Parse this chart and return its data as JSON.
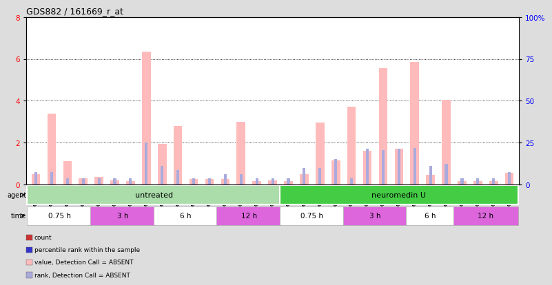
{
  "title": "GDS882 / 161669_r_at",
  "samples": [
    "GSM30904",
    "GSM30905",
    "GSM30906",
    "GSM30907",
    "GSM30912",
    "GSM30913",
    "GSM30914",
    "GSM30915",
    "GSM30919",
    "GSM30920",
    "GSM30921",
    "GSM30922",
    "GSM30927",
    "GSM30928",
    "GSM30929",
    "GSM30930",
    "GSM30908",
    "GSM30909",
    "GSM30910",
    "GSM30911",
    "GSM30916",
    "GSM30917",
    "GSM30918",
    "GSM30923",
    "GSM30924",
    "GSM30925",
    "GSM30926",
    "GSM30931",
    "GSM30932",
    "GSM30933",
    "GSM30934"
  ],
  "value_bars": [
    0.5,
    3.4,
    1.1,
    0.3,
    0.35,
    0.2,
    0.15,
    6.35,
    1.95,
    2.8,
    0.25,
    0.25,
    0.25,
    3.0,
    0.15,
    0.2,
    0.15,
    0.5,
    2.95,
    1.15,
    3.7,
    1.6,
    5.55,
    1.7,
    5.85,
    0.45,
    4.05,
    0.15,
    0.15,
    0.15,
    0.55
  ],
  "rank_bars": [
    0.6,
    0.6,
    0.3,
    0.3,
    0.3,
    0.3,
    0.3,
    2.0,
    0.9,
    0.7,
    0.3,
    0.3,
    0.5,
    0.5,
    0.3,
    0.3,
    0.3,
    0.8,
    0.8,
    1.2,
    0.3,
    1.7,
    1.65,
    1.7,
    1.75,
    0.9,
    1.0,
    0.3,
    0.3,
    0.3,
    0.6
  ],
  "ylim_left": [
    0,
    8
  ],
  "ylim_right": [
    0,
    100
  ],
  "yticks_left": [
    0,
    2,
    4,
    6,
    8
  ],
  "yticks_right": [
    0,
    25,
    50,
    75,
    100
  ],
  "ytick_labels_right": [
    "0",
    "25",
    "50",
    "75",
    "100%"
  ],
  "color_value_absent": "#ffbbbb",
  "color_rank_absent": "#aaaadd",
  "agent_groups": [
    {
      "label": "untreated",
      "start": 0,
      "end": 16,
      "color": "#aaddaa"
    },
    {
      "label": "neuromedin U",
      "start": 16,
      "end": 31,
      "color": "#44cc44"
    }
  ],
  "time_groups": [
    {
      "label": "0.75 h",
      "start": 0,
      "end": 4,
      "color": "#ffffff"
    },
    {
      "label": "3 h",
      "start": 4,
      "end": 8,
      "color": "#dd66dd"
    },
    {
      "label": "6 h",
      "start": 8,
      "end": 12,
      "color": "#ffffff"
    },
    {
      "label": "12 h",
      "start": 12,
      "end": 16,
      "color": "#dd66dd"
    },
    {
      "label": "0.75 h",
      "start": 16,
      "end": 20,
      "color": "#ffffff"
    },
    {
      "label": "3 h",
      "start": 20,
      "end": 24,
      "color": "#dd66dd"
    },
    {
      "label": "6 h",
      "start": 24,
      "end": 27,
      "color": "#ffffff"
    },
    {
      "label": "12 h",
      "start": 27,
      "end": 31,
      "color": "#dd66dd"
    }
  ],
  "legend_items": [
    {
      "label": "count",
      "color": "#cc3333"
    },
    {
      "label": "percentile rank within the sample",
      "color": "#3333cc"
    },
    {
      "label": "value, Detection Call = ABSENT",
      "color": "#ffbbbb"
    },
    {
      "label": "rank, Detection Call = ABSENT",
      "color": "#aaaadd"
    }
  ],
  "background_color": "#dddddd"
}
